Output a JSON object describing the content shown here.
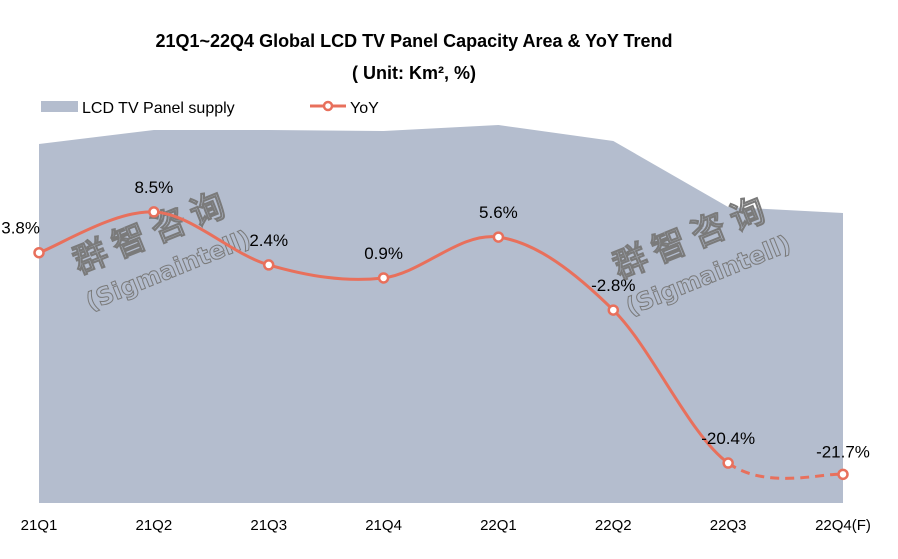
{
  "chart_data": {
    "type": "area+line",
    "title": "21Q1~22Q4 Global LCD TV Panel Capacity Area & YoY Trend",
    "subtitle": "( Unit: Km², %)",
    "categories": [
      "21Q1",
      "21Q2",
      "21Q3",
      "21Q4",
      "22Q1",
      "22Q2",
      "22Q3",
      "22Q4(F)"
    ],
    "series": [
      {
        "name": "LCD TV Panel supply",
        "type": "area",
        "color": "#b4bdce",
        "values_estimated_relative": [
          359,
          373,
          373,
          372,
          378,
          362,
          296,
          290
        ],
        "ylim": [
          0,
          400
        ]
      },
      {
        "name": "YoY",
        "type": "line",
        "color": "#e8705c",
        "values": [
          3.8,
          8.5,
          2.4,
          0.9,
          5.6,
          -2.8,
          -20.4,
          -21.7
        ],
        "labels": [
          "3.8%",
          "8.5%",
          "2.4%",
          "0.9%",
          "5.6%",
          "-2.8%",
          "-20.4%",
          "-21.7%"
        ],
        "forecast_from_index": 6,
        "ylim": [
          -25,
          18.5
        ]
      }
    ],
    "xlabel": "",
    "ylabel": "",
    "grid": false,
    "legend": "top-left",
    "watermark": {
      "cn": "群智咨询",
      "en": "(Sigmaintell)"
    }
  }
}
